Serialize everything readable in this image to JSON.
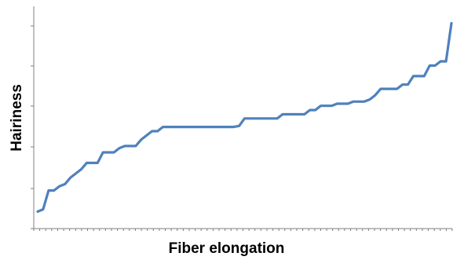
{
  "chart_data": {
    "type": "line",
    "title": "",
    "xlabel": "Fiber elongation",
    "ylabel": "Hairiness",
    "grid": false,
    "legend": "none",
    "x_tick_labels": false,
    "y_tick_labels": false,
    "series": [
      {
        "values": [
          0.08,
          0.091,
          0.18,
          0.18,
          0.2,
          0.21,
          0.24,
          0.26,
          0.28,
          0.31,
          0.31,
          0.31,
          0.36,
          0.36,
          0.36,
          0.38,
          0.39,
          0.39,
          0.39,
          0.42,
          0.44,
          0.46,
          0.46,
          0.48,
          0.48,
          0.48,
          0.48,
          0.48,
          0.48,
          0.48,
          0.48,
          0.48,
          0.48,
          0.48,
          0.48,
          0.48,
          0.48,
          0.485,
          0.52,
          0.52,
          0.52,
          0.52,
          0.52,
          0.52,
          0.52,
          0.54,
          0.54,
          0.54,
          0.54,
          0.54,
          0.56,
          0.56,
          0.58,
          0.58,
          0.58,
          0.59,
          0.59,
          0.59,
          0.6,
          0.6,
          0.6,
          0.61,
          0.63,
          0.66,
          0.66,
          0.66,
          0.66,
          0.68,
          0.68,
          0.72,
          0.72,
          0.72,
          0.77,
          0.77,
          0.79,
          0.79,
          0.97
        ]
      }
    ],
    "ylim": [
      0,
      1.05
    ],
    "colors": {
      "series": "#4f81bd",
      "axis": "#7f7f7f"
    }
  }
}
